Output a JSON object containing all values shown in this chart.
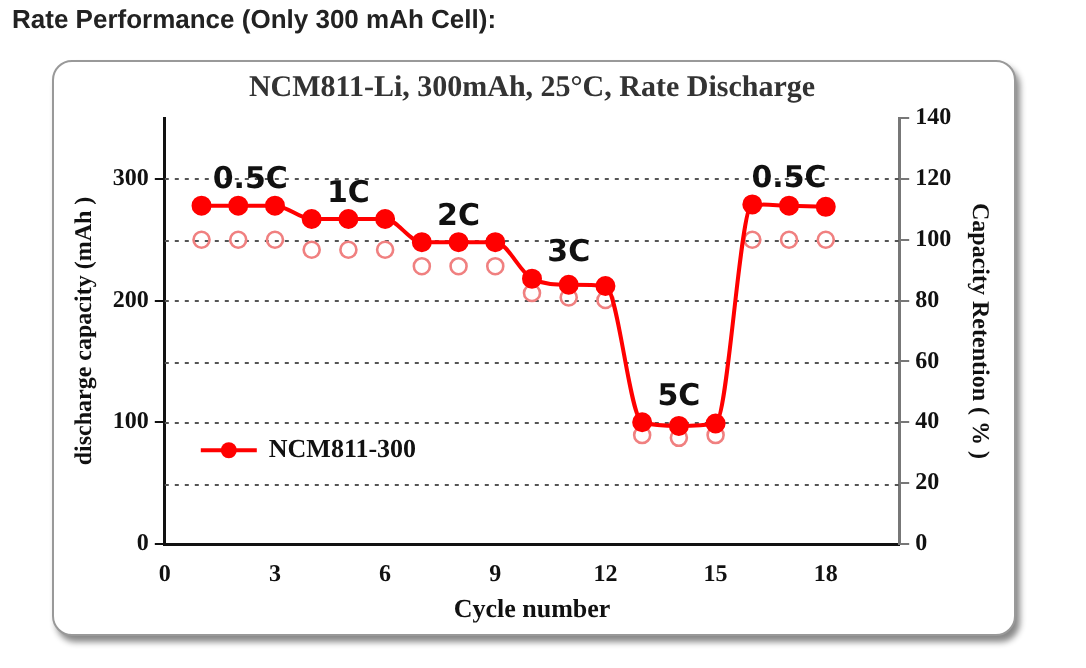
{
  "chart_data": {
    "type": "line",
    "title": "Rate Performance (Only 300 mAh Cell):",
    "subtitle": "NCM811-Li, 300mAh, 25°C, Rate Discharge",
    "xlabel": "Cycle number",
    "ylabel": "discharge capacity (mAh )",
    "y2label": "Capacity Retention ( % )",
    "x": [
      1,
      2,
      3,
      4,
      5,
      6,
      7,
      8,
      9,
      10,
      11,
      12,
      13,
      14,
      15,
      16,
      17,
      18
    ],
    "series": [
      {
        "name": "NCM811-300",
        "color": "#ff0000",
        "marker": "circle",
        "values": [
          278,
          278,
          278,
          267,
          267,
          267,
          248,
          248,
          248,
          218,
          213,
          212,
          100,
          97,
          99,
          279,
          278,
          277
        ]
      },
      {
        "type": "scatter",
        "axis": "y2",
        "color": "#f08080",
        "marker": "circle",
        "values": [
          100,
          100,
          100,
          96.7,
          96.7,
          96.7,
          91.3,
          91.3,
          91.3,
          82.5,
          81,
          80.2,
          35.8,
          34.9,
          35.8,
          100,
          100,
          100
        ]
      }
    ],
    "xlim": [
      0,
      20
    ],
    "xticks": [
      0,
      3,
      6,
      9,
      12,
      15,
      18
    ],
    "ylim": [
      0,
      350
    ],
    "yticks": [
      0,
      100,
      200,
      300
    ],
    "y2lim": [
      0,
      140
    ],
    "y2ticks": [
      0,
      20,
      40,
      60,
      80,
      100,
      120,
      140
    ],
    "grid": "y",
    "legend": "left",
    "annotations": [
      "0.5C",
      "1C",
      "2C",
      "3C",
      "5C",
      "0.5C"
    ]
  }
}
